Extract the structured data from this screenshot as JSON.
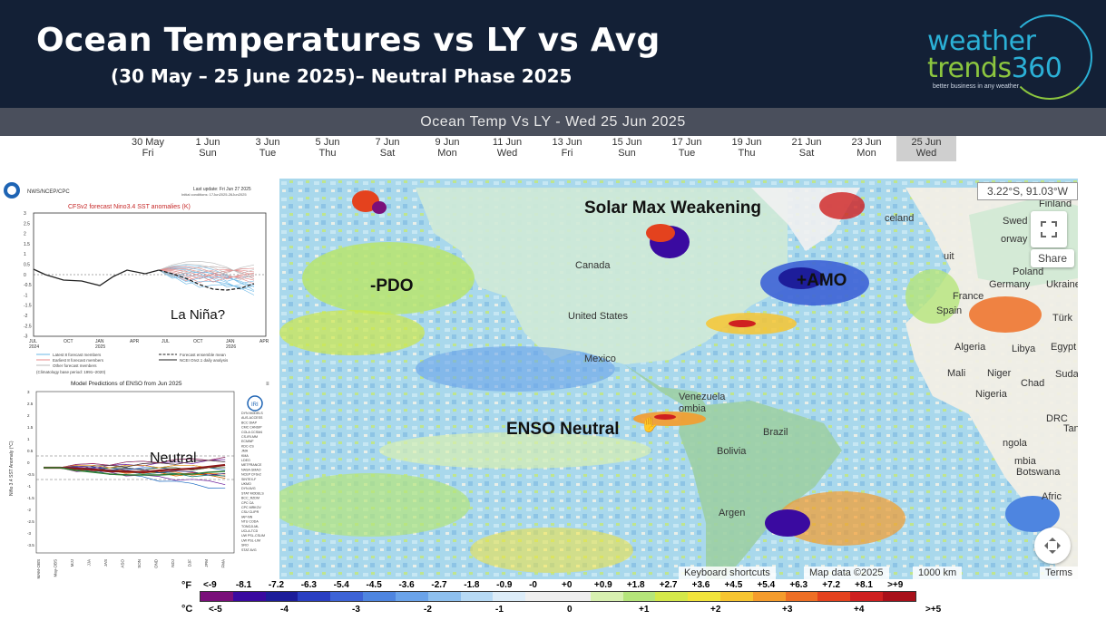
{
  "header": {
    "title": "Ocean Temperatures vs LY vs Avg",
    "subtitle": "(30 May – 25 June 2025)– Neutral Phase 2025",
    "logo_line1": "weather",
    "logo_line2a": "trends",
    "logo_line2b": "360",
    "logo_tagline": "better business in any weather"
  },
  "banner": {
    "text": "Ocean Temp Vs LY - Wed 25 Jun 2025"
  },
  "timeline": [
    {
      "date": "30 May",
      "day": "Fri"
    },
    {
      "date": "1 Jun",
      "day": "Sun"
    },
    {
      "date": "3 Jun",
      "day": "Tue"
    },
    {
      "date": "5 Jun",
      "day": "Thu"
    },
    {
      "date": "7 Jun",
      "day": "Sat"
    },
    {
      "date": "9 Jun",
      "day": "Mon"
    },
    {
      "date": "11 Jun",
      "day": "Wed"
    },
    {
      "date": "13 Jun",
      "day": "Fri"
    },
    {
      "date": "15 Jun",
      "day": "Sun"
    },
    {
      "date": "17 Jun",
      "day": "Tue"
    },
    {
      "date": "19 Jun",
      "day": "Thu"
    },
    {
      "date": "21 Jun",
      "day": "Sat"
    },
    {
      "date": "23 Jun",
      "day": "Mon"
    },
    {
      "date": "25 Jun",
      "day": "Wed"
    }
  ],
  "cfs": {
    "agency": "NWS/NCEP/CPC",
    "update": "Last update: Fri Jun 27 2025",
    "init": "Initial conditions: 17Jun2025-26Jun2025",
    "title": "CFSv2 forecast Nino3.4 SST anomalies (K)",
    "overlay": "La Niña?",
    "yticks": [
      "3",
      "2.5",
      "2",
      "1.5",
      "1",
      "0.5",
      "0",
      "-0.5",
      "-1",
      "-1.5",
      "-2",
      "-2.5",
      "-3"
    ],
    "xticks": [
      "JUL\n2024",
      "OCT",
      "JAN\n2025",
      "APR",
      "JUL",
      "OCT",
      "JAN\n2026",
      "APR"
    ],
    "legend1": "Latest 8 forecast members",
    "legend2": "Earliest 8 forecast members",
    "legend3": "Other forecast members",
    "legend4": "Forecast ensemble mean",
    "legend5": "NCEI OIv2.1 daily analysis",
    "climo": "(Climatology base period: 1991–2020)"
  },
  "enso": {
    "title": "Model Predictions of ENSO from Jun 2025",
    "overlay": "Neutral",
    "ylabel": "Niño 3.4 SST Anomaly (°C)",
    "yticks": [
      "3",
      "2.5",
      "2",
      "1.5",
      "1",
      "0.5",
      "0",
      "-0.5",
      "-1",
      "-1.5",
      "-2",
      "-2.5",
      "-3",
      "-3.5"
    ],
    "xticks": [
      "MAM-OBS",
      "May-OBS",
      "MJJ",
      "JJA",
      "JAS",
      "ASO",
      "SON",
      "OND",
      "NDJ",
      "DJF",
      "JFM",
      "FMA"
    ],
    "models": [
      "DYN MODELS",
      "AUS-ACCESS",
      "BCC DIAP",
      "CMC CANSIP",
      "COLA CCSM4",
      "CS-IRI-MM",
      "ECMWF",
      "KDC-CS",
      "JMA",
      "KMA",
      "LDEO",
      "METFRANCE",
      "NASA GMAO",
      "NCEP CFSv2",
      "SINTEX-F",
      "UKMO",
      "DYN AVG",
      "STAT MODELS",
      "BCC_RZDM",
      "CPC CA",
      "CPC MRKOV",
      "CSU CLIPR",
      "IAP-NN",
      "NTU CODA",
      "TONGJI-ML",
      "UCLA-TCD",
      "UW PSL-CSLIM",
      "UW PSL-LIM",
      "SRO",
      "STAT AVG"
    ]
  },
  "map": {
    "coords": "3.22°S, 91.03°W",
    "annotations": {
      "solar": "Solar Max Weakening",
      "pdo": "-PDO",
      "amo": "+AMO",
      "enso": "ENSO Neutral"
    },
    "places": {
      "canada": "Canada",
      "us": "United States",
      "mexico": "Mexico",
      "venezuela": "Venezuela",
      "ombia": "ombia",
      "brazil": "Brazil",
      "bolivia": "Bolivia",
      "argen": "Argen",
      "finland": "Finland",
      "swed": "Swed",
      "orway": "orway",
      "celand": "celand",
      "poland": "Poland",
      "germany": "Germany",
      "ukraine": "Ukraine",
      "france": "France",
      "spain": "Spain",
      "turk": "Türk",
      "algeria": "Algeria",
      "libya": "Libya",
      "egypt": "Egypt",
      "mali": "Mali",
      "niger": "Niger",
      "sudan": "Sudan",
      "chad": "Chad",
      "nigeria": "Nigeria",
      "drc": "DRC",
      "tan": "Tan",
      "angola": "ngola",
      "mbia": "mbia",
      "botswana": "Botswana",
      "afric": "Afric",
      "uit": "uit"
    },
    "share": "Share",
    "attr_keys": "Keyboard shortcuts",
    "attr_data": "Map data ©2025",
    "attr_scale": "1000 km",
    "attr_terms": "Terms"
  },
  "legend": {
    "f_unit": "°F",
    "c_unit": "°C",
    "f_labels": [
      "<-9",
      "-8.1",
      "-7.2",
      "-6.3",
      "-5.4",
      "-4.5",
      "-3.6",
      "-2.7",
      "-1.8",
      "-0.9",
      "-0",
      "+0",
      "+0.9",
      "+1.8",
      "+2.7",
      "+3.6",
      "+4.5",
      "+5.4",
      "+6.3",
      "+7.2",
      "+8.1",
      ">+9"
    ],
    "c_labels": [
      "<-5",
      "-4",
      "-3",
      "-2",
      "-1",
      "0",
      "+1",
      "+2",
      "+3",
      "+4",
      ">+5"
    ],
    "colors": [
      "#7a0f7a",
      "#3a0aa0",
      "#1d1d9a",
      "#2a3fc2",
      "#3d63d6",
      "#4e85e0",
      "#6aa3ea",
      "#8ec0ef",
      "#b7daf5",
      "#dcecf8",
      "#efefef",
      "#efefef",
      "#d8f0b0",
      "#b5e57a",
      "#d4e84a",
      "#f2e43c",
      "#f7c531",
      "#f59c2c",
      "#ee6f25",
      "#e4421e",
      "#cf2020",
      "#a8101a"
    ]
  }
}
